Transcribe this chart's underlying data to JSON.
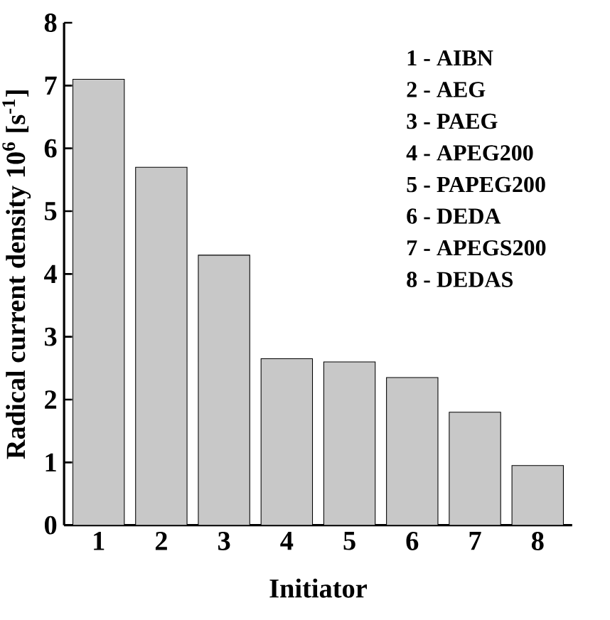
{
  "chart_data": {
    "type": "bar",
    "xlabel": "Initiator",
    "ylabel": "Radical current density 10$^{6}$ [s$^{-1}$]",
    "categories": [
      "1",
      "2",
      "3",
      "4",
      "5",
      "6",
      "7",
      "8"
    ],
    "values": [
      7.1,
      5.7,
      4.3,
      2.65,
      2.6,
      2.35,
      1.8,
      0.95
    ],
    "color": "#c8c8c8",
    "ylim": [
      0,
      8
    ],
    "yticks": [
      0,
      1,
      2,
      3,
      4,
      5,
      6,
      7,
      8
    ],
    "annotations": [
      "1 - AIBN",
      "2 - AEG",
      "3 - PAEG",
      "4 - APEG200",
      "5 - PAPEG200",
      "6 - DEDA",
      "7 - APEGS200",
      "8 - DEDAS"
    ]
  }
}
